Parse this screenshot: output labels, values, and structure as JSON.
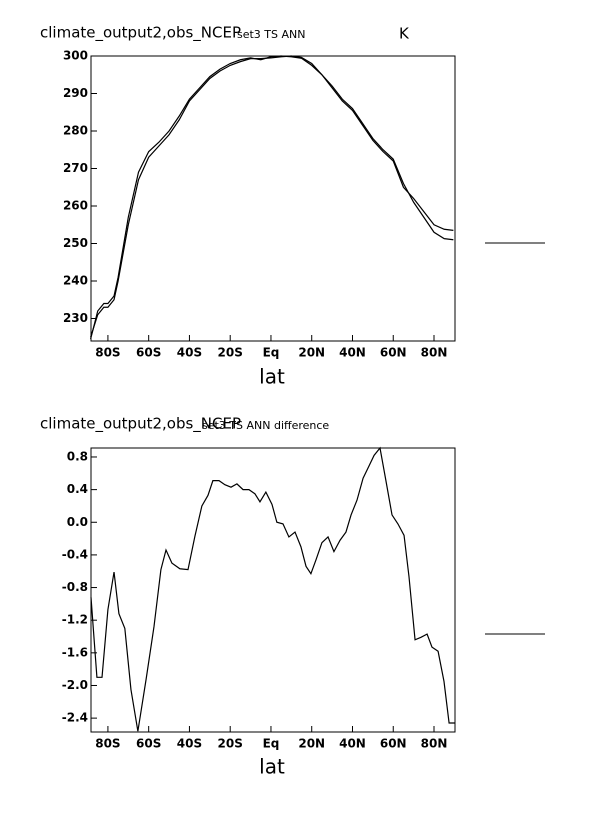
{
  "chart_data": [
    {
      "type": "line",
      "title": "climate_output2,obs_NCEP",
      "subtitle": "set3 TS ANN",
      "units": "K",
      "x_label": "lat",
      "x": [
        -88.5,
        -85,
        -82,
        -80,
        -77,
        -75,
        -70,
        -65,
        -60,
        -55,
        -50,
        -45,
        -40,
        -35,
        -30,
        -25,
        -20,
        -15,
        -10,
        -5,
        0,
        5,
        10,
        15,
        20,
        25,
        30,
        35,
        40,
        45,
        50,
        55,
        60,
        65,
        70,
        75,
        80,
        85,
        89.5
      ],
      "series": [
        {
          "color": "#000000",
          "values": [
            225,
            231,
            233,
            233,
            235,
            240,
            255,
            267,
            273,
            276,
            279,
            283,
            288,
            291,
            294,
            296,
            297.5,
            298.5,
            299.3,
            299.3,
            299.5,
            299.8,
            300,
            299.6,
            298,
            295,
            292,
            288.5,
            286,
            282,
            278,
            275,
            272.5,
            266,
            261,
            257,
            253,
            251.3,
            251
          ]
        },
        {
          "color": "#000000",
          "values": [
            224.5,
            232,
            234,
            234,
            236,
            241,
            257,
            269,
            274.5,
            277,
            280,
            284,
            288.5,
            291.5,
            294.5,
            296.5,
            298,
            299,
            299.5,
            299,
            299.8,
            300,
            299.8,
            299.4,
            297.5,
            295,
            291.5,
            288,
            285.5,
            281.5,
            277.5,
            274.5,
            272,
            265,
            262,
            258.5,
            255,
            253.8,
            253.5
          ]
        }
      ],
      "xlim": [
        -88.3,
        90.3
      ],
      "xticks": [
        {
          "value": -80,
          "label": "80S"
        },
        {
          "value": -60,
          "label": "60S"
        },
        {
          "value": -40,
          "label": "40S"
        },
        {
          "value": -20,
          "label": "20S"
        },
        {
          "value": 0,
          "label": "Eq"
        },
        {
          "value": 20,
          "label": "20N"
        },
        {
          "value": 40,
          "label": "40N"
        },
        {
          "value": 60,
          "label": "60N"
        },
        {
          "value": 80,
          "label": "80N"
        }
      ],
      "ylim": [
        224,
        300
      ],
      "yticks": [
        230,
        240,
        250,
        260,
        270,
        280,
        290,
        300
      ]
    },
    {
      "type": "line",
      "title": "climate_output2,obs_NCEP",
      "subtitle": "set3 TS ANN difference",
      "x_label": "lat",
      "x": [
        -88.3,
        -85.4,
        -82.9,
        -80,
        -77,
        -74.6,
        -71.7,
        -68.7,
        -65.3,
        -61.3,
        -57.4,
        -54,
        -51.5,
        -48.6,
        -44.7,
        -40.7,
        -37.3,
        -33.9,
        -30.9,
        -28.5,
        -25.5,
        -22.6,
        -19.6,
        -16.7,
        -13.7,
        -10.8,
        -7.9,
        -5.4,
        -2.5,
        0.5,
        2.9,
        5.9,
        8.8,
        11.8,
        14.7,
        17.2,
        19.6,
        22.1,
        25,
        28,
        30.9,
        33.9,
        36.8,
        39.3,
        42.2,
        45.2,
        48.1,
        50.6,
        53.5,
        56.4,
        59.4,
        62.3,
        65.3,
        67.7,
        70.7,
        73.6,
        76.6,
        79,
        82,
        84.9,
        87.4,
        90.3
      ],
      "series": [
        {
          "color": "#000000",
          "values": [
            -0.92,
            -1.9,
            -1.9,
            -1.07,
            -0.61,
            -1.12,
            -1.3,
            -2.05,
            -2.56,
            -1.93,
            -1.28,
            -0.58,
            -0.34,
            -0.5,
            -0.57,
            -0.58,
            -0.17,
            0.2,
            0.33,
            0.51,
            0.51,
            0.46,
            0.43,
            0.47,
            0.4,
            0.4,
            0.35,
            0.25,
            0.37,
            0.22,
            0,
            -0.02,
            -0.18,
            -0.12,
            -0.3,
            -0.54,
            -0.63,
            -0.46,
            -0.25,
            -0.18,
            -0.36,
            -0.22,
            -0.12,
            0.09,
            0.27,
            0.54,
            0.69,
            0.82,
            0.91,
            0.51,
            0.09,
            -0.02,
            -0.16,
            -0.66,
            -1.44,
            -1.41,
            -1.37,
            -1.53,
            -1.58,
            -1.95,
            -2.46,
            -2.46
          ]
        }
      ],
      "xlim": [
        -88.3,
        90.3
      ],
      "xticks": [
        {
          "value": -80,
          "label": "80S"
        },
        {
          "value": -60,
          "label": "60S"
        },
        {
          "value": -40,
          "label": "40S"
        },
        {
          "value": -20,
          "label": "20S"
        },
        {
          "value": 0,
          "label": "Eq"
        },
        {
          "value": 20,
          "label": "20N"
        },
        {
          "value": 40,
          "label": "40N"
        },
        {
          "value": 60,
          "label": "60N"
        },
        {
          "value": 80,
          "label": "80N"
        }
      ],
      "ylim": [
        -2.57,
        0.91
      ],
      "yticks": [
        {
          "value": -2.4,
          "label": "-2.4"
        },
        {
          "value": -2,
          "label": "-2.0"
        },
        -1.6,
        -1.2,
        -0.8,
        -0.4,
        {
          "value": 0,
          "label": "0.0"
        },
        0.4,
        0.8
      ]
    }
  ]
}
